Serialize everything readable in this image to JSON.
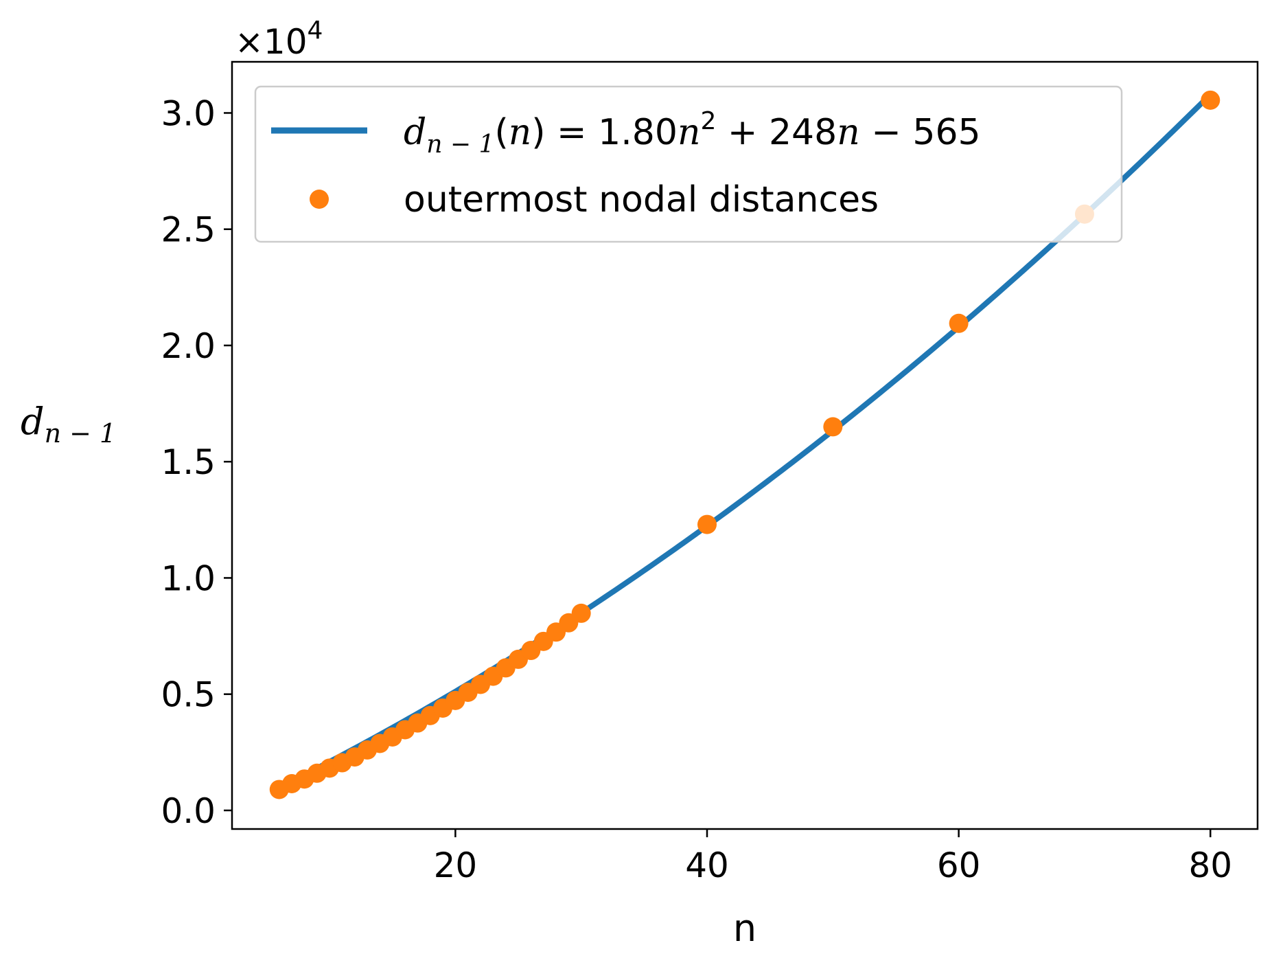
{
  "chart_data": {
    "type": "scatter",
    "xlabel": "n",
    "ylabel": "d_{n-1}",
    "xlim": [
      2.25,
      83.75
    ],
    "ylim": [
      -800,
      32200
    ],
    "y_scale_exponent_label": "×10⁴",
    "y_offset_base": "×10",
    "y_offset_exp": "4",
    "y_scale_factor": 10000,
    "grid": false,
    "legend_position": "top-left",
    "x_ticks": [
      20,
      40,
      60,
      80
    ],
    "x_tick_labels": [
      "20",
      "40",
      "60",
      "80"
    ],
    "y_ticks": [
      0,
      5000,
      10000,
      15000,
      20000,
      25000,
      30000
    ],
    "y_tick_labels": [
      "0.0",
      "0.5",
      "1.0",
      "1.5",
      "2.0",
      "2.5",
      "3.0"
    ],
    "series": [
      {
        "name": "d_{n-1}(n) = 1.80n^2 + 248n - 565",
        "kind": "line",
        "color": "#1f77b4",
        "fit": {
          "a": 1.8,
          "b": 248,
          "c": -565
        },
        "x_range": [
          6,
          80
        ]
      },
      {
        "name": "outermost nodal distances",
        "kind": "scatter",
        "color": "#ff7f0e",
        "x": [
          6,
          7,
          8,
          9,
          10,
          11,
          12,
          13,
          14,
          15,
          16,
          17,
          18,
          19,
          20,
          21,
          22,
          23,
          24,
          25,
          26,
          27,
          28,
          29,
          30,
          40,
          50,
          60,
          70,
          80
        ],
        "y": [
          900,
          1150,
          1350,
          1600,
          1820,
          2050,
          2300,
          2600,
          2880,
          3160,
          3470,
          3760,
          4080,
          4400,
          4730,
          5080,
          5420,
          5770,
          6130,
          6500,
          6880,
          7270,
          7670,
          8070,
          8480,
          12300,
          16500,
          20950,
          25650,
          30550
        ]
      }
    ],
    "legend": {
      "line_label": {
        "d": "d",
        "sub": "n − 1",
        "open": "(",
        "n1": "n",
        "eq": ") = 1.80",
        "n2": "n",
        "sup": "2",
        "mid": " + 248",
        "n3": "n",
        "tail": " − 565"
      },
      "points_label": "outermost nodal distances"
    },
    "ylabel_parts": {
      "d": "d",
      "sub": "n − 1"
    }
  }
}
